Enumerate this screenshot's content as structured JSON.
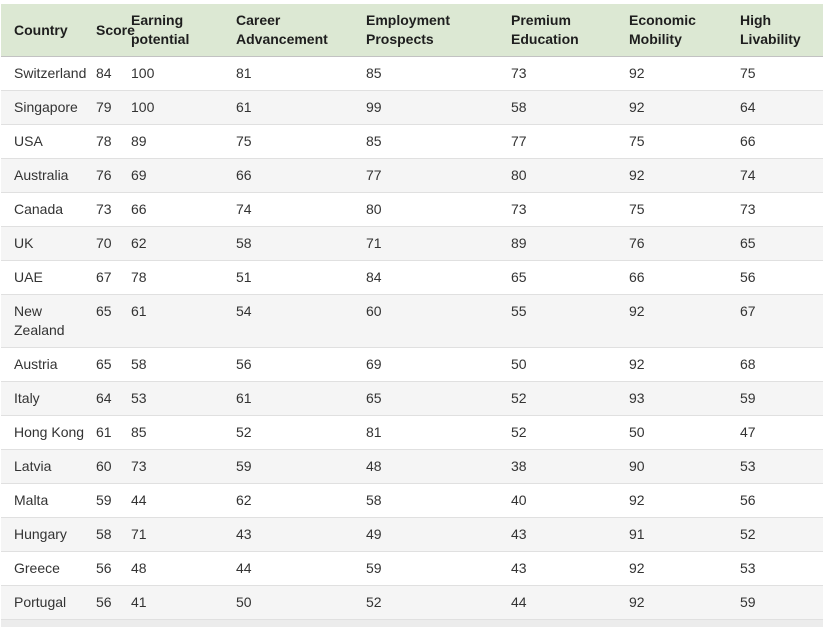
{
  "chart_data": {
    "type": "table",
    "columns": [
      "Country",
      "Score",
      "Earning potential",
      "Career Advancement",
      "Employment Prospects",
      "Premium Education",
      "Economic Mobility",
      "High Livability"
    ],
    "rows": [
      [
        "Switzerland",
        84,
        100,
        81,
        85,
        73,
        92,
        75
      ],
      [
        "Singapore",
        79,
        100,
        61,
        99,
        58,
        92,
        64
      ],
      [
        "USA",
        78,
        89,
        75,
        85,
        77,
        75,
        66
      ],
      [
        "Australia",
        76,
        69,
        66,
        77,
        80,
        92,
        74
      ],
      [
        "Canada",
        73,
        66,
        74,
        80,
        73,
        75,
        73
      ],
      [
        "UK",
        70,
        62,
        58,
        71,
        89,
        76,
        65
      ],
      [
        "UAE",
        67,
        78,
        51,
        84,
        65,
        66,
        56
      ],
      [
        "New Zealand",
        65,
        61,
        54,
        60,
        55,
        92,
        67
      ],
      [
        "Austria",
        65,
        58,
        56,
        69,
        50,
        92,
        68
      ],
      [
        "Italy",
        64,
        53,
        61,
        65,
        52,
        93,
        59
      ],
      [
        "Hong Kong",
        61,
        85,
        52,
        81,
        52,
        50,
        47
      ],
      [
        "Latvia",
        60,
        73,
        59,
        48,
        38,
        90,
        53
      ],
      [
        "Malta",
        59,
        44,
        62,
        58,
        40,
        92,
        56
      ],
      [
        "Hungary",
        58,
        71,
        43,
        49,
        43,
        91,
        52
      ],
      [
        "Greece",
        56,
        48,
        44,
        59,
        43,
        92,
        53
      ],
      [
        "Portugal",
        56,
        41,
        50,
        52,
        44,
        92,
        59
      ]
    ],
    "layout": {
      "grid": "horizontal-row-borders-only",
      "striped_rows": true,
      "header_position": "top"
    }
  },
  "colors": {
    "header_bg": "#dce8d3",
    "header_text": "#1e1e1e",
    "header_border": "#c2c2c2",
    "stripe_bg": "#f5f5f5",
    "row_border": "#e0e0e0",
    "text": "#333333",
    "strip_bg": "#ececec"
  }
}
